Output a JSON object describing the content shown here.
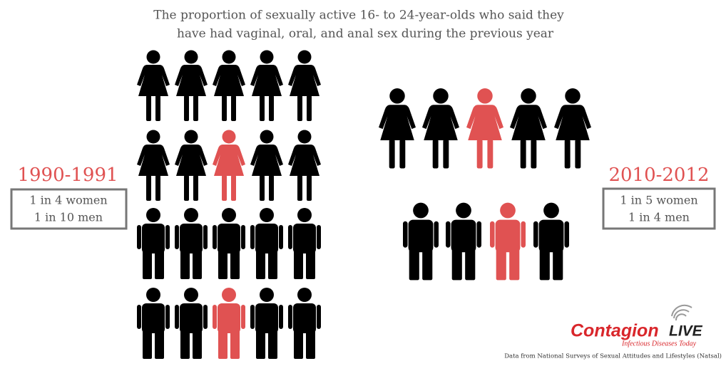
{
  "header": {
    "title_line1": "The proportion of sexually active 16- to 24-year-olds who said they",
    "title_line2": "have had vaginal, oral, and anal sex during the previous year"
  },
  "left_panel": {
    "period": "1990-1991",
    "women": "1 in 4 women",
    "men": "1 in 10 men"
  },
  "right_panel": {
    "period": "2010-2012",
    "women": "1 in 5 women",
    "men": "1 in 4 men"
  },
  "logo": {
    "name": "Contagion",
    "suffix": "LIVE",
    "tagline": "Infectious Diseases Today"
  },
  "footer": {
    "source": "Data from National Surveys of Sexual Attitudes and Lifestyles (Natsal)"
  }
}
